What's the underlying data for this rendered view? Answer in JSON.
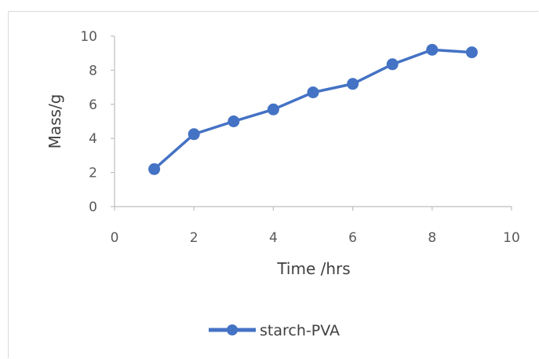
{
  "chart_data": {
    "type": "scatter",
    "mode": "lines+markers",
    "xlabel": "Time /hrs",
    "ylabel": "Mass/g",
    "xlim": [
      0,
      10
    ],
    "ylim": [
      0,
      10
    ],
    "xticks": [
      0,
      2,
      4,
      6,
      8,
      10
    ],
    "yticks": [
      0,
      2,
      4,
      6,
      8,
      10
    ],
    "grid": false,
    "legend_position": "bottom",
    "series": [
      {
        "name": "starch-PVA",
        "color": "#4472c4",
        "x": [
          1,
          2,
          3,
          4,
          5,
          6,
          7,
          8,
          9
        ],
        "y": [
          2.2,
          4.25,
          5.0,
          5.7,
          6.7,
          7.2,
          8.35,
          9.2,
          9.05
        ]
      }
    ]
  }
}
